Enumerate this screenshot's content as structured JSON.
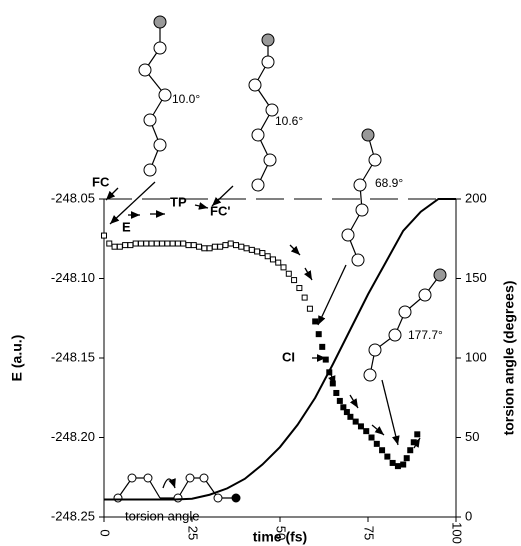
{
  "chart_data": {
    "type": "scatter",
    "xlabel": "time (fs)",
    "ylabel": "E (a.u.)",
    "y2label": "torsion angle (degrees)",
    "xlim": [
      0,
      100
    ],
    "xticks": [
      0,
      25,
      50,
      75,
      100
    ],
    "ylim": [
      -248.25,
      -248.05
    ],
    "yticks": [
      {
        "value": -248.25,
        "label": "-248.25"
      },
      {
        "value": -248.2,
        "label": "-248.20"
      },
      {
        "value": -248.15,
        "label": "-248.15"
      },
      {
        "value": -248.1,
        "label": "-248.10"
      },
      {
        "value": -248.05,
        "label": "-248.05"
      }
    ],
    "y2lim": [
      0,
      200
    ],
    "y2ticks": [
      0,
      50,
      100,
      150,
      200
    ],
    "series": [
      {
        "type": "scatter",
        "marker": "open-square",
        "color": "#000000",
        "x": [
          0,
          1.5,
          3,
          4.5,
          6,
          7.5,
          9,
          10.5,
          12,
          13.5,
          15,
          16.5,
          18,
          19.5,
          21,
          22.5,
          24,
          25.5,
          27,
          28.5,
          30,
          31.5,
          33,
          34.5,
          36,
          37.5,
          39,
          40.5,
          42,
          43.5,
          45,
          46.5,
          48,
          49.5,
          51,
          52.5,
          54,
          55.5,
          57,
          58.5
        ],
        "values": [
          -248.073,
          -248.078,
          -248.08,
          -248.08,
          -248.079,
          -248.079,
          -248.078,
          -248.078,
          -248.078,
          -248.078,
          -248.078,
          -248.078,
          -248.078,
          -248.078,
          -248.078,
          -248.078,
          -248.079,
          -248.079,
          -248.08,
          -248.081,
          -248.081,
          -248.08,
          -248.08,
          -248.079,
          -248.078,
          -248.079,
          -248.08,
          -248.081,
          -248.082,
          -248.083,
          -248.084,
          -248.086,
          -248.088,
          -248.09,
          -248.093,
          -248.097,
          -248.101,
          -248.106,
          -248.112,
          -248.119
        ]
      },
      {
        "type": "scatter",
        "marker": "filled-square",
        "color": "#000000",
        "x": [
          60,
          61,
          62,
          63,
          64,
          65,
          66,
          67,
          68,
          69,
          70,
          71.5,
          73,
          74.5,
          76,
          77.5,
          79,
          80.5,
          82,
          83.5,
          85,
          86,
          87,
          88,
          89
        ],
        "values": [
          -248.127,
          -248.135,
          -248.143,
          -248.151,
          -248.159,
          -248.166,
          -248.172,
          -248.177,
          -248.181,
          -248.184,
          -248.187,
          -248.19,
          -248.193,
          -248.196,
          -248.2,
          -248.204,
          -248.208,
          -248.212,
          -248.216,
          -248.218,
          -248.217,
          -248.213,
          -248.208,
          -248.203,
          -248.198
        ]
      },
      {
        "type": "line",
        "axis": "y2",
        "color": "#000000",
        "x": [
          0,
          10,
          20,
          25,
          30,
          35,
          40,
          45,
          50,
          55,
          60,
          65,
          70,
          75,
          80,
          85,
          90,
          95,
          100
        ],
        "values": [
          11,
          11,
          11,
          11.5,
          14,
          18,
          24,
          33,
          44,
          58,
          75,
          96,
          118,
          140,
          160,
          180,
          192,
          200,
          200
        ]
      }
    ],
    "annotations": [
      "FC",
      "E",
      "TP",
      "FC'",
      "CI",
      "torsion angle",
      "10.0°",
      "10.6°",
      "68.9°",
      "177.7°"
    ]
  }
}
